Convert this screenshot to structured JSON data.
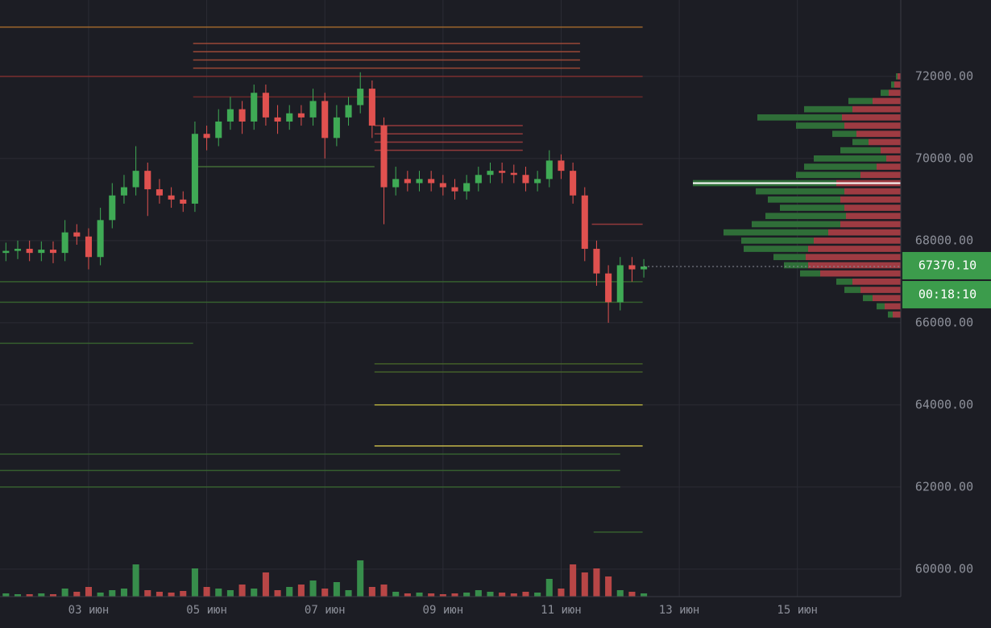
{
  "chart_data": {
    "type": "candlestick",
    "x": [
      1.6,
      1.8,
      2.0,
      2.2,
      2.4,
      2.6,
      2.8,
      3.0,
      3.2,
      3.4,
      3.6,
      3.8,
      4.0,
      4.2,
      4.4,
      4.6,
      4.8,
      5.0,
      5.2,
      5.4,
      5.6,
      5.8,
      6.0,
      6.2,
      6.4,
      6.6,
      6.8,
      7.0,
      7.2,
      7.4,
      7.6,
      7.8,
      8.0,
      8.2,
      8.4,
      8.6,
      8.8,
      9.0,
      9.2,
      9.4,
      9.6,
      9.8,
      10.0,
      10.2,
      10.4,
      10.6,
      10.8,
      11.0,
      11.2,
      11.4,
      11.6,
      11.8,
      12.0,
      12.2,
      12.4
    ],
    "candles": {
      "open": [
        67700,
        67750,
        67800,
        67700,
        67780,
        67700,
        68200,
        68100,
        67600,
        68500,
        69100,
        69300,
        69700,
        69250,
        69100,
        69000,
        68900,
        70600,
        70500,
        70900,
        71200,
        70900,
        71600,
        71000,
        70900,
        71100,
        71000,
        71400,
        70500,
        71000,
        71300,
        71700,
        70800,
        69300,
        69500,
        69400,
        69500,
        69400,
        69300,
        69200,
        69400,
        69600,
        69700,
        69650,
        69600,
        69400,
        69500,
        69950,
        69700,
        69100,
        67800,
        67200,
        66500,
        67400,
        67300
      ],
      "high": [
        67950,
        68000,
        68000,
        67980,
        67980,
        68500,
        68400,
        68300,
        68800,
        69400,
        69600,
        70300,
        69900,
        69500,
        69300,
        69200,
        70900,
        70800,
        71200,
        71500,
        71400,
        71800,
        71800,
        71300,
        71300,
        71300,
        71700,
        71600,
        71300,
        71500,
        72100,
        71900,
        71000,
        69800,
        69700,
        69700,
        69700,
        69600,
        69500,
        69600,
        69800,
        69900,
        69900,
        69850,
        69800,
        69700,
        70200,
        70100,
        69900,
        69300,
        68000,
        67400,
        67600,
        67600,
        67550
      ],
      "low": [
        67500,
        67550,
        67500,
        67500,
        67450,
        67500,
        67900,
        67300,
        67400,
        68300,
        68900,
        69100,
        68600,
        68900,
        68800,
        68700,
        68700,
        70200,
        70300,
        70700,
        70600,
        70700,
        70800,
        70600,
        70700,
        70800,
        70800,
        70000,
        70300,
        70800,
        71100,
        70500,
        68400,
        69100,
        69200,
        69200,
        69200,
        69100,
        69000,
        69000,
        69200,
        69400,
        69400,
        69400,
        69200,
        69200,
        69300,
        69500,
        68900,
        67500,
        66900,
        66000,
        66300,
        67000,
        67100
      ],
      "close": [
        67750,
        67800,
        67700,
        67780,
        67700,
        68200,
        68100,
        67600,
        68500,
        69100,
        69300,
        69700,
        69250,
        69100,
        69000,
        68900,
        70600,
        70500,
        70900,
        71200,
        70900,
        71600,
        71000,
        70900,
        71100,
        71000,
        71400,
        70500,
        71000,
        71300,
        71700,
        70800,
        69300,
        69500,
        69400,
        69500,
        69400,
        69300,
        69200,
        69400,
        69600,
        69700,
        69650,
        69600,
        69400,
        69500,
        69950,
        69700,
        69100,
        67800,
        67200,
        66500,
        67400,
        67300,
        67370.1
      ],
      "up_color": "#3faa55",
      "down_color": "#e0514f"
    },
    "volume": {
      "values": [
        4,
        3,
        3,
        4,
        3,
        10,
        6,
        12,
        5,
        8,
        10,
        40,
        8,
        6,
        5,
        7,
        35,
        12,
        10,
        8,
        15,
        10,
        30,
        8,
        12,
        15,
        20,
        10,
        18,
        8,
        45,
        12,
        15,
        6,
        4,
        5,
        4,
        3,
        4,
        5,
        8,
        6,
        5,
        4,
        6,
        5,
        22,
        10,
        40,
        30,
        35,
        25,
        8,
        6,
        4
      ],
      "vlim": [
        0,
        100
      ]
    },
    "xlim": [
      1.5,
      16.75
    ],
    "xticks": [
      {
        "value": 3,
        "label": "03 июн"
      },
      {
        "value": 5,
        "label": "05 июн"
      },
      {
        "value": 7,
        "label": "07 июн"
      },
      {
        "value": 9,
        "label": "09 июн"
      },
      {
        "value": 11,
        "label": "11 июн"
      },
      {
        "value": 13,
        "label": "13 июн"
      },
      {
        "value": 15,
        "label": "15 июн"
      }
    ],
    "ylim": [
      59330,
      73860
    ],
    "yticks": [
      {
        "value": 60000,
        "label": "60000.00"
      },
      {
        "value": 62000,
        "label": "62000.00"
      },
      {
        "value": 64000,
        "label": "64000.00"
      },
      {
        "value": 66000,
        "label": "66000.00"
      },
      {
        "value": 68000,
        "label": "68000.00"
      },
      {
        "value": 70000,
        "label": "70000.00"
      },
      {
        "value": 72000,
        "label": "72000.00"
      }
    ],
    "grid": true,
    "levels": [
      {
        "price": 73200,
        "from": 1.5,
        "to": 12.38,
        "color": "#b8742e"
      },
      {
        "price": 72800,
        "from": 4.77,
        "to": 11.32,
        "color": "#b0503a"
      },
      {
        "price": 72600,
        "from": 4.77,
        "to": 11.32,
        "color": "#b0503a"
      },
      {
        "price": 72400,
        "from": 4.77,
        "to": 11.32,
        "color": "#b0503a"
      },
      {
        "price": 72200,
        "from": 4.77,
        "to": 11.32,
        "color": "#b0503a"
      },
      {
        "price": 72000,
        "from": 1.5,
        "to": 12.38,
        "color": "#8a3030"
      },
      {
        "price": 71500,
        "from": 4.77,
        "to": 12.38,
        "color": "#7a2c2c"
      },
      {
        "price": 70800,
        "from": 7.84,
        "to": 10.35,
        "color": "#a84040"
      },
      {
        "price": 70600,
        "from": 7.84,
        "to": 10.35,
        "color": "#a84040"
      },
      {
        "price": 70400,
        "from": 7.84,
        "to": 10.35,
        "color": "#a84040"
      },
      {
        "price": 70200,
        "from": 7.84,
        "to": 10.35,
        "color": "#a84040"
      },
      {
        "price": 69800,
        "from": 4.77,
        "to": 7.84,
        "color": "#4a7a3a"
      },
      {
        "price": 68400,
        "from": 11.52,
        "to": 12.38,
        "color": "#a84040"
      },
      {
        "price": 67000,
        "from": 1.5,
        "to": 12.38,
        "color": "#3a6a30"
      },
      {
        "price": 66500,
        "from": 1.5,
        "to": 12.38,
        "color": "#3a6a30"
      },
      {
        "price": 65500,
        "from": 1.5,
        "to": 4.77,
        "color": "#3a6a30"
      },
      {
        "price": 65000,
        "from": 7.84,
        "to": 12.38,
        "color": "#4a6a2a"
      },
      {
        "price": 64800,
        "from": 7.84,
        "to": 12.38,
        "color": "#4a6a2a"
      },
      {
        "price": 64000,
        "from": 7.84,
        "to": 12.38,
        "color": "#c8c040"
      },
      {
        "price": 63000,
        "from": 7.84,
        "to": 12.38,
        "color": "#e0d050"
      },
      {
        "price": 62800,
        "from": 1.5,
        "to": 12.0,
        "color": "#3a6a30"
      },
      {
        "price": 62400,
        "from": 1.5,
        "to": 12.0,
        "color": "#3a6a30"
      },
      {
        "price": 62000,
        "from": 1.5,
        "to": 12.0,
        "color": "#3a6a30"
      },
      {
        "price": 60900,
        "from": 11.55,
        "to": 12.38,
        "color": "#3a6a30"
      }
    ],
    "profile": {
      "prices": [
        72000,
        71800,
        71600,
        71400,
        71200,
        71000,
        70800,
        70600,
        70400,
        70200,
        70000,
        69800,
        69600,
        69400,
        69200,
        69000,
        68800,
        68600,
        68400,
        68200,
        68000,
        67800,
        67600,
        67400,
        67200,
        67000,
        66800,
        66600,
        66400,
        66200
      ],
      "sell": [
        4,
        8,
        15,
        35,
        60,
        73,
        70,
        55,
        40,
        25,
        18,
        30,
        50,
        80,
        70,
        75,
        70,
        68,
        75,
        90,
        108,
        115,
        118,
        115,
        100,
        60,
        50,
        35,
        20,
        10
      ],
      "buy": [
        2,
        4,
        10,
        30,
        60,
        105,
        60,
        30,
        20,
        50,
        90,
        90,
        80,
        178,
        110,
        90,
        80,
        100,
        110,
        130,
        90,
        80,
        40,
        30,
        25,
        20,
        20,
        12,
        10,
        6
      ],
      "sell_color": "#9e3b42",
      "buy_color": "#2f6e38",
      "poc": 69400,
      "poc_color": "#ffffff"
    },
    "last_price": {
      "value": 67370.1,
      "label": "67370.10"
    },
    "countdown": "00:18:10",
    "label_color": "#3c9c4c"
  }
}
